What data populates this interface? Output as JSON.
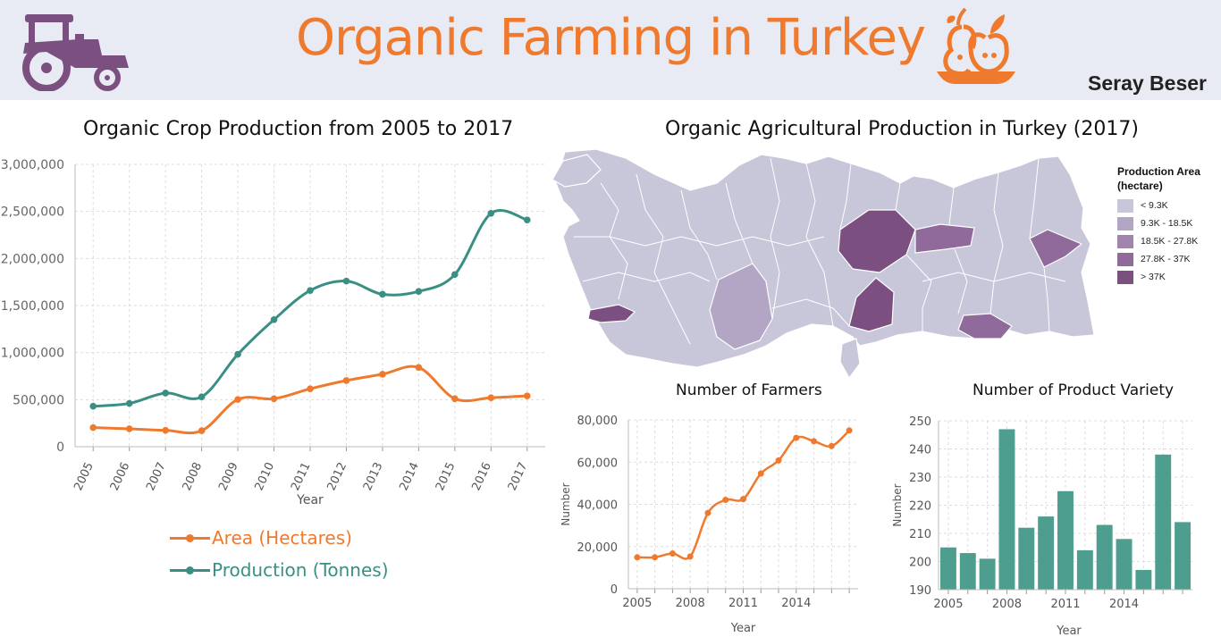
{
  "header": {
    "title": "Organic Farming in Turkey",
    "author": "Seray Beser"
  },
  "icons": {
    "left": "tractor-icon",
    "right": "fruit-bowl-icon"
  },
  "colors": {
    "accent": "#ef7a2d",
    "teal": "#3a8f84",
    "header_bg": "#e8ebf3",
    "purple": "#7b5080"
  },
  "chart_data": [
    {
      "id": "crop",
      "type": "line",
      "title": "Organic Crop Production from 2005 to 2017",
      "xlabel": "Year",
      "ylabel": "",
      "x": [
        "2005",
        "2006",
        "2007",
        "2008",
        "2009",
        "2010",
        "2011",
        "2012",
        "2013",
        "2014",
        "2015",
        "2016",
        "2017"
      ],
      "ylim": [
        0,
        3000000
      ],
      "yticks": [
        "0",
        "500,000",
        "1,000,000",
        "1,500,000",
        "2,000,000",
        "2,500,000",
        "3,000,000"
      ],
      "grid": true,
      "legend": "bottom",
      "series": [
        {
          "name": "Area (Hectares)",
          "color": "#ef7a2d",
          "values": [
            203000,
            190000,
            174000,
            170000,
            502000,
            510000,
            615000,
            703000,
            770000,
            842000,
            510000,
            520000,
            540000
          ]
        },
        {
          "name": "Production (Tonnes)",
          "color": "#3a8f84",
          "values": [
            430000,
            460000,
            570000,
            530000,
            982000,
            1350000,
            1660000,
            1760000,
            1620000,
            1650000,
            1830000,
            2480000,
            2410000
          ]
        }
      ]
    },
    {
      "id": "map",
      "type": "map",
      "title": "Organic Agricultural Production in Turkey (2017)",
      "legend_title": "Production Area (hectare)",
      "legend": [
        {
          "label": "< 9.3K",
          "color": "#c8c6d9"
        },
        {
          "label": "9.3K - 18.5K",
          "color": "#b3a5c4"
        },
        {
          "label": "18.5K - 27.8K",
          "color": "#a184ad"
        },
        {
          "label": "27.8K - 37K",
          "color": "#8f6a9a"
        },
        {
          "label": "> 37K",
          "color": "#7b5080"
        }
      ]
    },
    {
      "id": "farmers",
      "type": "line",
      "title": "Number of Farmers",
      "xlabel": "Year",
      "ylabel": "Number",
      "x": [
        2005,
        2006,
        2007,
        2008,
        2009,
        2010,
        2011,
        2012,
        2013,
        2014,
        2015,
        2016,
        2017
      ],
      "xticks": [
        "2005",
        "2008",
        "2011",
        "2014"
      ],
      "ylim": [
        0,
        80000
      ],
      "yticks": [
        "0",
        "20,000",
        "40,000",
        "60,000",
        "80,000"
      ],
      "grid": true,
      "color": "#ef7a2d",
      "values": [
        14900,
        14900,
        16700,
        15300,
        35900,
        42100,
        42500,
        54600,
        60800,
        71500,
        69900,
        67600,
        75000
      ]
    },
    {
      "id": "variety",
      "type": "bar",
      "title": "Number of Product Variety",
      "xlabel": "Year",
      "ylabel": "Number",
      "categories": [
        2005,
        2006,
        2007,
        2008,
        2009,
        2010,
        2011,
        2012,
        2013,
        2014,
        2015,
        2016,
        2017
      ],
      "xticks": [
        "2005",
        "2008",
        "2011",
        "2014"
      ],
      "ylim": [
        190,
        250
      ],
      "yticks": [
        "190",
        "200",
        "210",
        "220",
        "230",
        "240",
        "250"
      ],
      "grid": true,
      "color": "#4e9e8f",
      "values": [
        205,
        203,
        201,
        247,
        212,
        216,
        225,
        204,
        213,
        208,
        197,
        238,
        214
      ]
    }
  ]
}
